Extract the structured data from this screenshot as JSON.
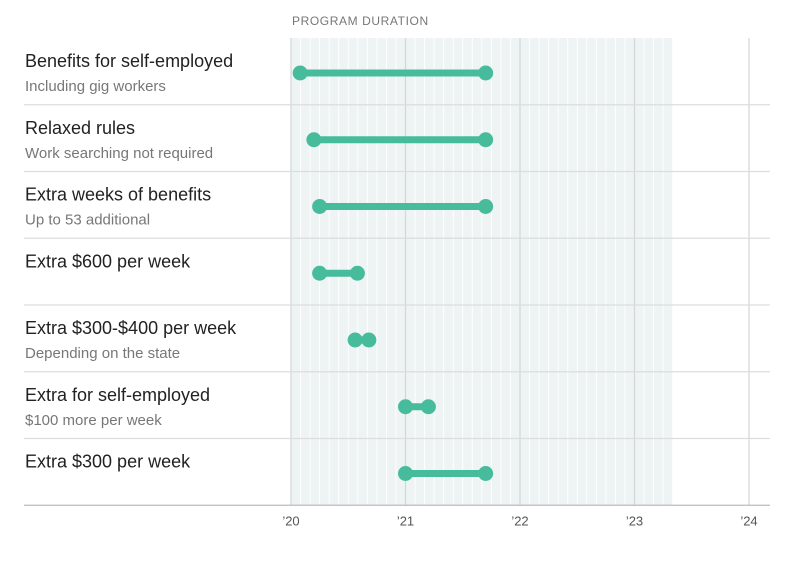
{
  "chart_data": {
    "type": "range",
    "title": "PROGRAM DURATION",
    "x_range": [
      2020,
      2024
    ],
    "ticks": [
      {
        "value": 2020,
        "label": "’20"
      },
      {
        "value": 2021,
        "label": "’21"
      },
      {
        "value": 2022,
        "label": "’22"
      },
      {
        "value": 2023,
        "label": "’23"
      },
      {
        "value": 2024,
        "label": "’24"
      }
    ],
    "shaded_until": 2023.33,
    "color": "#46bc9c",
    "rows": [
      {
        "label": "Benefits for self-employed",
        "sublabel": "Including gig workers",
        "start": 2020.08,
        "end": 2021.7
      },
      {
        "label": "Relaxed rules",
        "sublabel": "Work searching not required",
        "start": 2020.2,
        "end": 2021.7
      },
      {
        "label": "Extra weeks of benefits",
        "sublabel": "Up to 53 additional",
        "start": 2020.25,
        "end": 2021.7
      },
      {
        "label": "Extra $600 per week",
        "sublabel": "",
        "start": 2020.25,
        "end": 2020.58
      },
      {
        "label": "Extra $300-$400 per week",
        "sublabel": "Depending on the state",
        "start": 2020.56,
        "end": 2020.68
      },
      {
        "label": "Extra for self-employed",
        "sublabel": "$100 more per week",
        "start": 2021.0,
        "end": 2021.2
      },
      {
        "label": "Extra $300 per week",
        "sublabel": "",
        "start": 2021.0,
        "end": 2021.7
      }
    ]
  }
}
